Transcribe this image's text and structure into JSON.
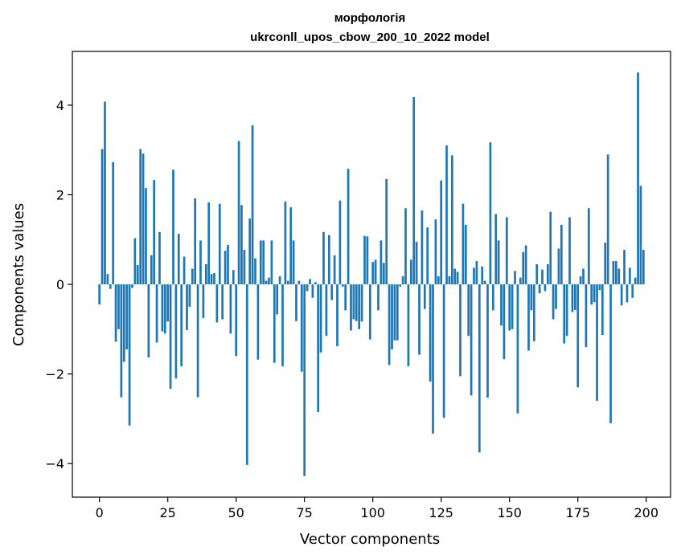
{
  "chart_data": {
    "type": "bar",
    "title_line1": "морфологія",
    "title_line2": "ukrconll_upos_cbow_200_10_2022 model",
    "xlabel": "Vector components",
    "ylabel": "Components values",
    "xlim": [
      -9.9,
      208.9
    ],
    "ylim": [
      -4.75,
      5.2
    ],
    "xticks": [
      0,
      25,
      50,
      75,
      100,
      125,
      150,
      175,
      200
    ],
    "yticks": [
      -4,
      -2,
      0,
      2,
      4
    ],
    "ytick_labels": [
      "−4",
      "−2",
      "0",
      "2",
      "4"
    ],
    "color": "#1f77b4",
    "grid": false,
    "x": [
      0,
      1,
      2,
      3,
      4,
      5,
      6,
      7,
      8,
      9,
      10,
      11,
      12,
      13,
      14,
      15,
      16,
      17,
      18,
      19,
      20,
      21,
      22,
      23,
      24,
      25,
      26,
      27,
      28,
      29,
      30,
      31,
      32,
      33,
      34,
      35,
      36,
      37,
      38,
      39,
      40,
      41,
      42,
      43,
      44,
      45,
      46,
      47,
      48,
      49,
      50,
      51,
      52,
      53,
      54,
      55,
      56,
      57,
      58,
      59,
      60,
      61,
      62,
      63,
      64,
      65,
      66,
      67,
      68,
      69,
      70,
      71,
      72,
      73,
      74,
      75,
      76,
      77,
      78,
      79,
      80,
      81,
      82,
      83,
      84,
      85,
      86,
      87,
      88,
      89,
      90,
      91,
      92,
      93,
      94,
      95,
      96,
      97,
      98,
      99,
      100,
      101,
      102,
      103,
      104,
      105,
      106,
      107,
      108,
      109,
      110,
      111,
      112,
      113,
      114,
      115,
      116,
      117,
      118,
      119,
      120,
      121,
      122,
      123,
      124,
      125,
      126,
      127,
      128,
      129,
      130,
      131,
      132,
      133,
      134,
      135,
      136,
      137,
      138,
      139,
      140,
      141,
      142,
      143,
      144,
      145,
      146,
      147,
      148,
      149,
      150,
      151,
      152,
      153,
      154,
      155,
      156,
      157,
      158,
      159,
      160,
      161,
      162,
      163,
      164,
      165,
      166,
      167,
      168,
      169,
      170,
      171,
      172,
      173,
      174,
      175,
      176,
      177,
      178,
      179,
      180,
      181,
      182,
      183,
      184,
      185,
      186,
      187,
      188,
      189,
      190,
      191,
      192,
      193,
      194,
      195,
      196,
      197,
      198,
      199
    ],
    "values": [
      -0.45,
      3.02,
      4.08,
      0.23,
      -0.1,
      2.73,
      -1.28,
      -1.0,
      -2.52,
      -1.73,
      -1.45,
      -3.15,
      -0.08,
      1.03,
      0.43,
      3.02,
      2.92,
      2.15,
      -1.63,
      0.65,
      2.33,
      -1.3,
      1.17,
      -1.05,
      -1.1,
      -0.83,
      -2.33,
      2.56,
      -2.1,
      1.13,
      -1.83,
      0.62,
      -1.02,
      -0.5,
      0.35,
      1.92,
      -2.52,
      0.98,
      -0.75,
      0.45,
      1.83,
      0.23,
      0.25,
      -0.85,
      1.8,
      -0.78,
      0.75,
      0.88,
      -1.1,
      0.32,
      -1.6,
      3.2,
      1.77,
      0.77,
      -4.03,
      1.47,
      3.55,
      0.58,
      -1.68,
      0.98,
      0.98,
      0.08,
      0.15,
      0.98,
      -1.75,
      -0.67,
      0.18,
      -1.83,
      1.85,
      0.08,
      1.72,
      0.98,
      -0.82,
      0.08,
      -1.95,
      -4.28,
      -0.15,
      0.12,
      -0.3,
      0.05,
      -2.85,
      -1.52,
      1.17,
      -1.15,
      1.1,
      -0.35,
      0.65,
      -1.38,
      1.87,
      -0.05,
      -0.58,
      2.58,
      -1.03,
      -0.78,
      -0.82,
      -1.0,
      -0.83,
      1.08,
      1.07,
      -1.23,
      0.5,
      0.55,
      -0.58,
      0.98,
      0.48,
      2.35,
      -1.8,
      -1.45,
      -1.25,
      -1.25,
      -0.05,
      0.18,
      1.7,
      -1.83,
      0.55,
      4.18,
      0.95,
      -1.57,
      1.65,
      -0.55,
      1.27,
      -2.17,
      -3.33,
      1.45,
      0.18,
      2.32,
      -2.98,
      3.1,
      0.18,
      2.88,
      0.35,
      0.28,
      -2.05,
      1.8,
      1.33,
      -1.15,
      -2.48,
      0.37,
      0.52,
      -3.75,
      0.4,
      0.08,
      -2.53,
      3.17,
      -0.58,
      1.57,
      0.98,
      -0.92,
      -1.67,
      1.5,
      -1.03,
      -1.0,
      0.3,
      -2.88,
      0.15,
      0.72,
      0.87,
      -1.48,
      -0.58,
      -1.27,
      0.45,
      -0.2,
      0.33,
      -0.15,
      0.45,
      1.62,
      -0.78,
      -0.55,
      0.8,
      1.33,
      -1.32,
      -1.15,
      1.5,
      -0.62,
      -0.57,
      -2.3,
      0.18,
      0.35,
      -1.4,
      1.7,
      -0.45,
      -0.4,
      -2.6,
      -0.13,
      -1.13,
      0.93,
      2.9,
      -3.1,
      0.52,
      0.52,
      0.35,
      -0.47,
      0.77,
      -0.4,
      0.37,
      -0.3,
      0.15,
      4.73,
      2.2,
      0.77
    ]
  }
}
